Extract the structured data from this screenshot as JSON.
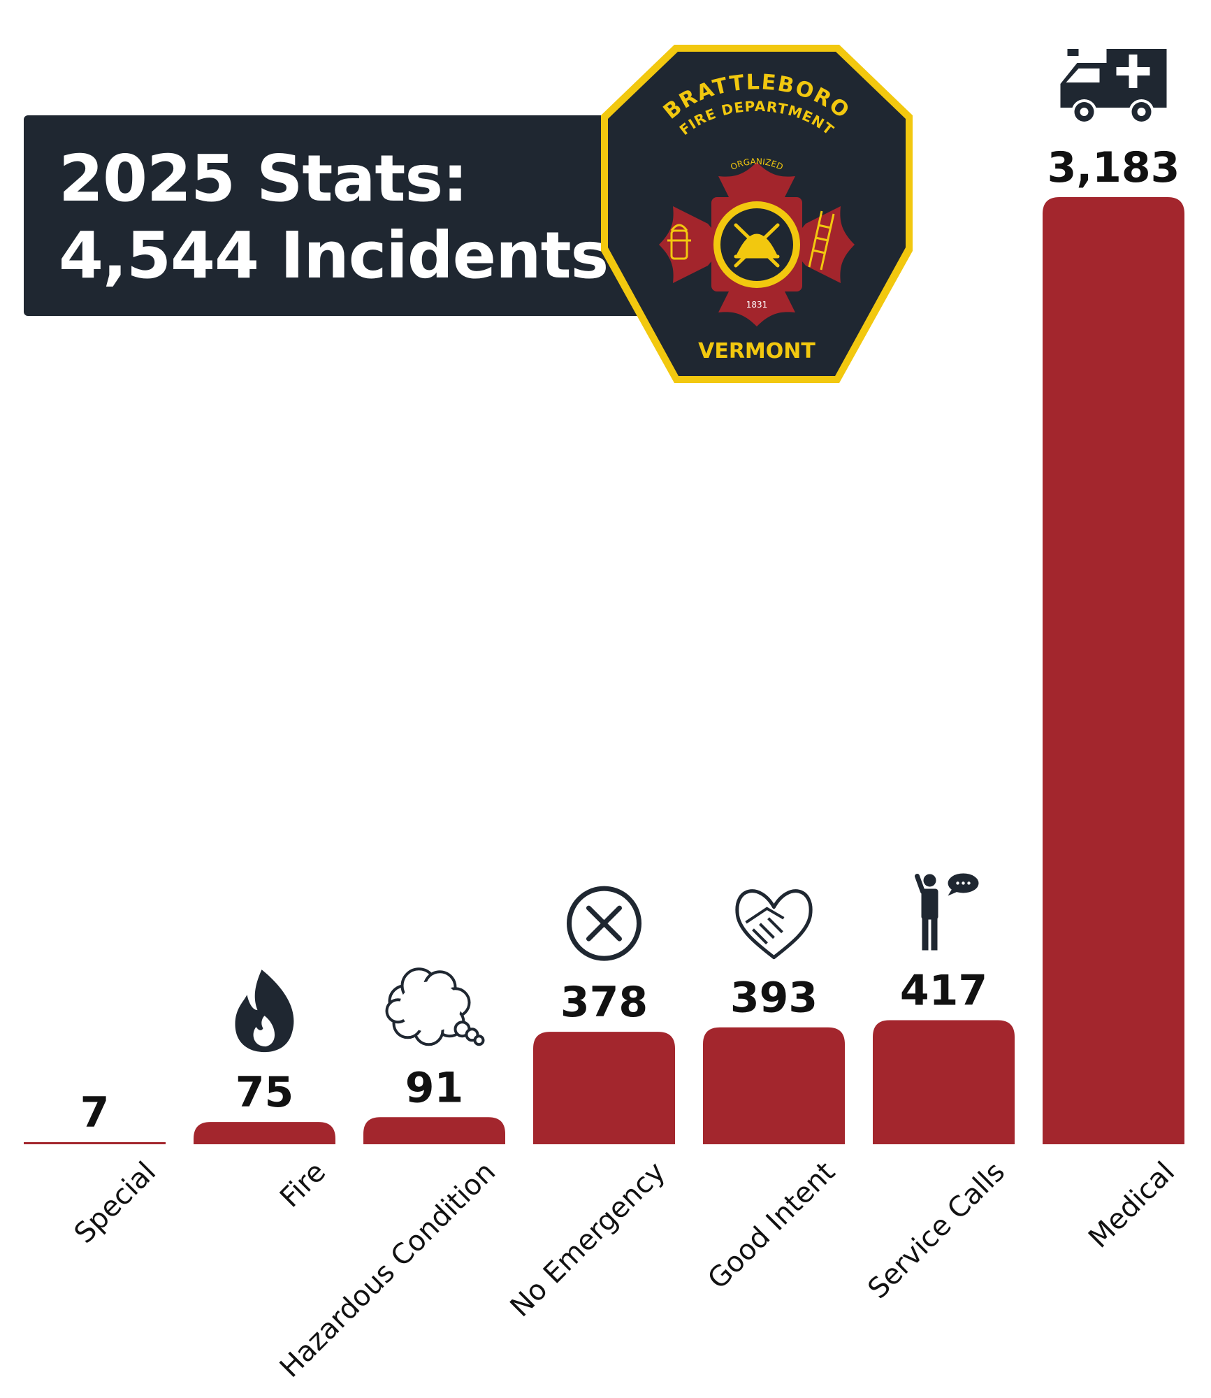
{
  "title": {
    "line1": "2025 Stats:",
    "line2": "4,544 Incidents"
  },
  "badge": {
    "top_text": "BRATTLEBORO",
    "sub_text": "FIRE DEPARTMENT",
    "organized": "ORGANIZED",
    "year": "1831",
    "bottom_text": "VERMONT",
    "colors": {
      "border": "#f2c80f",
      "field": "#1f2731",
      "cross": "#a3252c",
      "gold": "#f2c80f"
    }
  },
  "chart_data": {
    "type": "bar",
    "categories": [
      "Special",
      "Fire",
      "Hazardous Condition",
      "No Emergency",
      "Good Intent",
      "Service Calls",
      "Medical"
    ],
    "values": [
      7,
      75,
      91,
      378,
      393,
      417,
      3183
    ],
    "value_labels": [
      "7",
      "75",
      "91",
      "378",
      "393",
      "417",
      "3,183"
    ],
    "icons": [
      "",
      "flame-icon",
      "smoke-cloud-icon",
      "circle-x-icon",
      "heart-handshake-icon",
      "person-phone-icon",
      "ambulance-icon"
    ],
    "ylim": [
      0,
      3183
    ],
    "bar_color": "#a3262d",
    "grid": false,
    "legend": "none"
  }
}
